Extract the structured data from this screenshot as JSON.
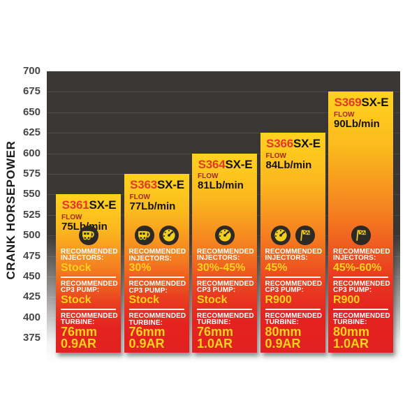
{
  "y_axis": {
    "title": "CRANK HORSEPOWER",
    "ticks": [
      "700",
      "675",
      "650",
      "625",
      "600",
      "575",
      "550",
      "525",
      "500",
      "475",
      "450",
      "425",
      "400",
      "375"
    ]
  },
  "chart_data": {
    "type": "bar",
    "title": "",
    "xlabel": "",
    "ylabel": "CRANK HORSEPOWER",
    "ylim": [
      375,
      700
    ],
    "ytick_step": 25,
    "grid": true,
    "legend_position": "none",
    "categories": [
      "S361SX-E",
      "S363SX-E",
      "S364SX-E",
      "S366SX-E",
      "S369SX-E"
    ],
    "values": [
      550,
      575,
      600,
      625,
      675
    ],
    "units": "HP"
  },
  "bars": [
    {
      "hp": 550,
      "model_prefix": "S361",
      "model_suffix": "SX-E",
      "flow_label": "FLOW",
      "flow_value": "75Lb/min",
      "icons": [
        "towing"
      ],
      "injectors_header": "RECOMMENDED INJECTORS:",
      "injectors_value": "Stock",
      "pump_header": "RECOMMENDED CP3 PUMP:",
      "pump_value": "Stock",
      "turbine_header": "RECOMMENDED TURBINE:",
      "turbine_size": "76mm",
      "turbine_ar": "0.9AR"
    },
    {
      "hp": 575,
      "model_prefix": "S363",
      "model_suffix": "SX-E",
      "flow_label": "FLOW",
      "flow_value": "77Lb/min",
      "icons": [
        "towing",
        "gauge"
      ],
      "injectors_header": "RECOMMENDED INJECTORS:",
      "injectors_value": "30%",
      "pump_header": "RECOMMENDED CP3 PUMP:",
      "pump_value": "Stock",
      "turbine_header": "RECOMMENDED TURBINE:",
      "turbine_size": "76mm",
      "turbine_ar": "0.9AR"
    },
    {
      "hp": 600,
      "model_prefix": "S364",
      "model_suffix": "SX-E",
      "flow_label": "FLOW",
      "flow_value": "81Lb/min",
      "icons": [
        "gauge"
      ],
      "injectors_header": "RECOMMENDED INJECTORS:",
      "injectors_value": "30%-45%",
      "pump_header": "RECOMMENDED CP3 PUMP:",
      "pump_value": "Stock",
      "turbine_header": "RECOMMENDED TURBINE:",
      "turbine_size": "76mm",
      "turbine_ar": "1.0AR"
    },
    {
      "hp": 625,
      "model_prefix": "S366",
      "model_suffix": "SX-E",
      "flow_label": "FLOW",
      "flow_value": "84Lb/min",
      "icons": [
        "gauge",
        "flag"
      ],
      "injectors_header": "RECOMMENDED INJECTORS:",
      "injectors_value": "45%",
      "pump_header": "RECOMMENDED CP3 PUMP:",
      "pump_value": "R900",
      "turbine_header": "RECOMMENDED TURBINE:",
      "turbine_size": "80mm",
      "turbine_ar": "0.9AR"
    },
    {
      "hp": 675,
      "model_prefix": "S369",
      "model_suffix": "SX-E",
      "flow_label": "FLOW",
      "flow_value": "90Lb/min",
      "icons": [
        "flag"
      ],
      "injectors_header": "RECOMMENDED INJECTORS:",
      "injectors_value": "45%-60%",
      "pump_header": "RECOMMENDED CP3 PUMP:",
      "pump_value": "R900",
      "turbine_header": "RECOMMENDED TURBINE:",
      "turbine_size": "80mm",
      "turbine_ar": "1.0AR"
    }
  ],
  "colors": {
    "bar_gradient_top": "#ffd21f",
    "bar_gradient_mid": "#f47b20",
    "bar_gradient_bottom": "#e42320",
    "model_number_red": "#e23a28",
    "flow_label_red": "#a12b1d",
    "value_yellow": "#ffd21e",
    "header_white": "#ffffff",
    "plot_background": "#3b3734",
    "icon_disc": "#2e2924",
    "icon_glyph": "#f2cf1e",
    "axis_tick_color": "#464646"
  }
}
